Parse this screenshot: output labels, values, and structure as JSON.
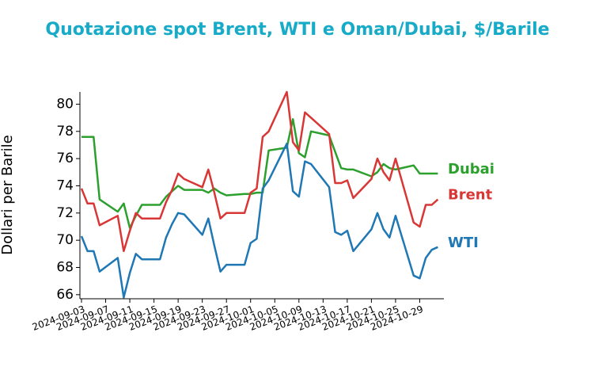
{
  "chart_data": {
    "type": "line",
    "title": "Quotazione spot Brent, WTI e Oman/Dubai, $/Barile",
    "y_label": "Dollari per Barile",
    "x": [
      "2024-09-03",
      "2024-09-04",
      "2024-09-05",
      "2024-09-06",
      "2024-09-09",
      "2024-09-10",
      "2024-09-11",
      "2024-09-12",
      "2024-09-13",
      "2024-09-16",
      "2024-09-17",
      "2024-09-18",
      "2024-09-19",
      "2024-09-20",
      "2024-09-23",
      "2024-09-24",
      "2024-09-25",
      "2024-09-26",
      "2024-09-27",
      "2024-09-30",
      "2024-10-01",
      "2024-10-02",
      "2024-10-03",
      "2024-10-04",
      "2024-10-07",
      "2024-10-08",
      "2024-10-09",
      "2024-10-10",
      "2024-10-11",
      "2024-10-14",
      "2024-10-15",
      "2024-10-16",
      "2024-10-17",
      "2024-10-18",
      "2024-10-21",
      "2024-10-22",
      "2024-10-23",
      "2024-10-24",
      "2024-10-25",
      "2024-10-28",
      "2024-10-29",
      "2024-10-30",
      "2024-10-31",
      "2024-11-01"
    ],
    "series": [
      {
        "name": "Dubai",
        "color": "#2ca02c",
        "values": [
          77.6,
          77.6,
          77.6,
          73.0,
          72.1,
          72.7,
          70.9,
          71.8,
          72.6,
          72.6,
          73.2,
          73.6,
          74.0,
          73.7,
          73.7,
          73.5,
          73.8,
          73.5,
          73.3,
          73.4,
          73.4,
          73.5,
          73.5,
          76.6,
          76.8,
          78.9,
          76.4,
          76.1,
          78.0,
          77.7,
          76.5,
          75.3,
          75.2,
          75.2,
          74.7,
          75.0,
          75.6,
          75.3,
          75.2,
          75.5,
          74.9,
          74.9,
          74.9,
          74.9
        ]
      },
      {
        "name": "Brent",
        "color": "#d93636",
        "values": [
          73.8,
          72.7,
          72.7,
          71.1,
          71.8,
          69.2,
          70.7,
          72.0,
          71.6,
          71.6,
          72.8,
          73.7,
          74.9,
          74.5,
          73.9,
          75.2,
          73.5,
          71.6,
          72.0,
          72.0,
          73.5,
          73.8,
          77.6,
          78.0,
          80.9,
          77.2,
          76.6,
          79.4,
          79.0,
          77.8,
          74.2,
          74.2,
          74.4,
          73.1,
          74.5,
          76.0,
          75.0,
          74.4,
          76.0,
          71.3,
          71.0,
          72.6,
          72.6,
          73.0
        ]
      },
      {
        "name": "WTI",
        "color": "#1f77b4",
        "values": [
          70.3,
          69.2,
          69.2,
          67.7,
          68.7,
          65.8,
          67.6,
          69.0,
          68.6,
          68.6,
          70.2,
          71.2,
          72.0,
          71.9,
          70.4,
          71.6,
          69.6,
          67.7,
          68.2,
          68.2,
          69.8,
          70.1,
          73.8,
          74.4,
          77.1,
          73.6,
          73.2,
          75.8,
          75.6,
          73.9,
          70.6,
          70.4,
          70.7,
          69.2,
          70.8,
          72.0,
          70.8,
          70.2,
          71.8,
          67.4,
          67.2,
          68.7,
          69.3,
          69.5
        ]
      }
    ],
    "xlim": [
      "2024-09-03",
      "2024-11-02"
    ],
    "xticks": [
      "2024-09-03",
      "2024-09-07",
      "2024-09-11",
      "2024-09-15",
      "2024-09-19",
      "2024-09-23",
      "2024-09-27",
      "2024-10-01",
      "2024-10-05",
      "2024-10-09",
      "2024-10-13",
      "2024-10-17",
      "2024-10-21",
      "2024-10-25",
      "2024-10-29"
    ],
    "ylim": [
      65.7,
      80.9
    ],
    "yticks": [
      66,
      68,
      70,
      72,
      74,
      76,
      78,
      80
    ]
  }
}
